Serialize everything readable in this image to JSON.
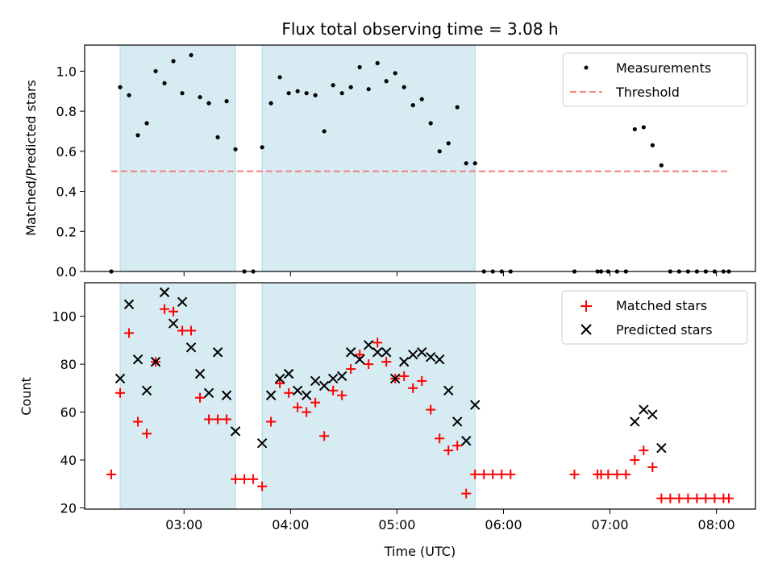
{
  "chart_data": [
    {
      "type": "scatter",
      "title": "Flux total observing time = 3.08 h",
      "xlabel": "",
      "ylabel": "Matched/Predicted stars",
      "ylim": [
        0,
        1.13
      ],
      "yticks": [
        "0.0",
        "0.2",
        "0.4",
        "0.6",
        "0.8",
        "1.0"
      ],
      "ytick_values": [
        0,
        0.2,
        0.4,
        0.6,
        0.8,
        1.0
      ],
      "xlim": [
        "02:04",
        "08:22"
      ],
      "shaded_intervals": [
        [
          "02:24",
          "03:29"
        ],
        [
          "03:44",
          "05:44"
        ]
      ],
      "legend_position": "top-right",
      "legend": [
        "Measurements",
        "Threshold"
      ],
      "threshold": {
        "name": "Threshold",
        "value": 0.5,
        "x": [
          "02:19",
          "08:07"
        ],
        "color": "#f08080"
      },
      "series": [
        {
          "name": "Measurements",
          "marker": "dot",
          "color": "#000000",
          "points": [
            [
              "02:19",
              0.0
            ],
            [
              "02:24",
              0.92
            ],
            [
              "02:29",
              0.88
            ],
            [
              "02:34",
              0.68
            ],
            [
              "02:39",
              0.74
            ],
            [
              "02:44",
              1.0
            ],
            [
              "02:49",
              0.94
            ],
            [
              "02:54",
              1.05
            ],
            [
              "02:59",
              0.89
            ],
            [
              "03:04",
              1.08
            ],
            [
              "03:09",
              0.87
            ],
            [
              "03:14",
              0.84
            ],
            [
              "03:19",
              0.67
            ],
            [
              "03:24",
              0.85
            ],
            [
              "03:29",
              0.61
            ],
            [
              "03:34",
              0.0
            ],
            [
              "03:39",
              0.0
            ],
            [
              "03:44",
              0.62
            ],
            [
              "03:49",
              0.84
            ],
            [
              "03:54",
              0.97
            ],
            [
              "03:59",
              0.89
            ],
            [
              "04:04",
              0.9
            ],
            [
              "04:09",
              0.89
            ],
            [
              "04:14",
              0.88
            ],
            [
              "04:19",
              0.7
            ],
            [
              "04:24",
              0.93
            ],
            [
              "04:29",
              0.89
            ],
            [
              "04:34",
              0.92
            ],
            [
              "04:39",
              1.02
            ],
            [
              "04:44",
              0.91
            ],
            [
              "04:49",
              1.04
            ],
            [
              "04:54",
              0.95
            ],
            [
              "04:59",
              0.99
            ],
            [
              "05:04",
              0.92
            ],
            [
              "05:09",
              0.83
            ],
            [
              "05:14",
              0.86
            ],
            [
              "05:19",
              0.74
            ],
            [
              "05:24",
              0.6
            ],
            [
              "05:29",
              0.64
            ],
            [
              "05:34",
              0.82
            ],
            [
              "05:39",
              0.54
            ],
            [
              "05:44",
              0.54
            ],
            [
              "05:49",
              0.0
            ],
            [
              "05:54",
              0.0
            ],
            [
              "05:59",
              0.0
            ],
            [
              "06:04",
              0.0
            ],
            [
              "06:40",
              0.0
            ],
            [
              "06:53",
              0.0
            ],
            [
              "06:55",
              0.0
            ],
            [
              "06:59",
              0.0
            ],
            [
              "07:04",
              0.0
            ],
            [
              "07:09",
              0.0
            ],
            [
              "07:14",
              0.71
            ],
            [
              "07:19",
              0.72
            ],
            [
              "07:24",
              0.63
            ],
            [
              "07:29",
              0.53
            ],
            [
              "07:34",
              0.0
            ],
            [
              "07:39",
              0.0
            ],
            [
              "07:44",
              0.0
            ],
            [
              "07:49",
              0.0
            ],
            [
              "07:54",
              0.0
            ],
            [
              "07:59",
              0.0
            ],
            [
              "08:04",
              0.0
            ],
            [
              "08:07",
              0.0
            ]
          ]
        }
      ]
    },
    {
      "type": "scatter",
      "title": "",
      "xlabel": "Time (UTC)",
      "ylabel": "Count",
      "ylim": [
        19.5,
        114
      ],
      "yticks": [
        "20",
        "40",
        "60",
        "80",
        "100"
      ],
      "ytick_values": [
        20,
        40,
        60,
        80,
        100
      ],
      "xlim": [
        "02:04",
        "08:22"
      ],
      "xticks": [
        "03:00",
        "04:00",
        "05:00",
        "06:00",
        "07:00",
        "08:00"
      ],
      "shaded_intervals": [
        [
          "02:24",
          "03:29"
        ],
        [
          "03:44",
          "05:44"
        ]
      ],
      "legend_position": "top-right",
      "legend": [
        "Matched stars",
        "Predicted stars"
      ],
      "series": [
        {
          "name": "Matched stars",
          "marker": "plus",
          "color": "#ff0000",
          "points": [
            [
              "02:19",
              34
            ],
            [
              "02:24",
              68
            ],
            [
              "02:29",
              93
            ],
            [
              "02:34",
              56
            ],
            [
              "02:39",
              51
            ],
            [
              "02:44",
              81
            ],
            [
              "02:49",
              103
            ],
            [
              "02:54",
              102
            ],
            [
              "02:59",
              94
            ],
            [
              "03:04",
              94
            ],
            [
              "03:09",
              66
            ],
            [
              "03:14",
              57
            ],
            [
              "03:19",
              57
            ],
            [
              "03:24",
              57
            ],
            [
              "03:29",
              32
            ],
            [
              "03:34",
              32
            ],
            [
              "03:39",
              32
            ],
            [
              "03:44",
              29
            ],
            [
              "03:49",
              56
            ],
            [
              "03:54",
              72
            ],
            [
              "03:59",
              68
            ],
            [
              "04:04",
              62
            ],
            [
              "04:09",
              60
            ],
            [
              "04:14",
              64
            ],
            [
              "04:19",
              50
            ],
            [
              "04:24",
              69
            ],
            [
              "04:29",
              67
            ],
            [
              "04:34",
              78
            ],
            [
              "04:39",
              84
            ],
            [
              "04:44",
              80
            ],
            [
              "04:49",
              89
            ],
            [
              "04:54",
              81
            ],
            [
              "04:59",
              74
            ],
            [
              "05:04",
              75
            ],
            [
              "05:09",
              70
            ],
            [
              "05:14",
              73
            ],
            [
              "05:19",
              61
            ],
            [
              "05:24",
              49
            ],
            [
              "05:29",
              44
            ],
            [
              "05:34",
              46
            ],
            [
              "05:39",
              26
            ],
            [
              "05:44",
              34
            ],
            [
              "05:49",
              34
            ],
            [
              "05:54",
              34
            ],
            [
              "05:59",
              34
            ],
            [
              "06:04",
              34
            ],
            [
              "06:40",
              34
            ],
            [
              "06:53",
              34
            ],
            [
              "06:55",
              34
            ],
            [
              "06:59",
              34
            ],
            [
              "07:04",
              34
            ],
            [
              "07:09",
              34
            ],
            [
              "07:14",
              40
            ],
            [
              "07:19",
              44
            ],
            [
              "07:24",
              37
            ],
            [
              "07:29",
              24
            ],
            [
              "07:34",
              24
            ],
            [
              "07:39",
              24
            ],
            [
              "07:44",
              24
            ],
            [
              "07:49",
              24
            ],
            [
              "07:54",
              24
            ],
            [
              "07:59",
              24
            ],
            [
              "08:04",
              24
            ],
            [
              "08:07",
              24
            ]
          ]
        },
        {
          "name": "Predicted stars",
          "marker": "x",
          "color": "#000000",
          "points": [
            [
              "02:24",
              74
            ],
            [
              "02:29",
              105
            ],
            [
              "02:34",
              82
            ],
            [
              "02:39",
              69
            ],
            [
              "02:44",
              81
            ],
            [
              "02:49",
              110
            ],
            [
              "02:54",
              97
            ],
            [
              "02:59",
              106
            ],
            [
              "03:04",
              87
            ],
            [
              "03:09",
              76
            ],
            [
              "03:14",
              68
            ],
            [
              "03:19",
              85
            ],
            [
              "03:24",
              67
            ],
            [
              "03:29",
              52
            ],
            [
              "03:44",
              47
            ],
            [
              "03:49",
              67
            ],
            [
              "03:54",
              74
            ],
            [
              "03:59",
              76
            ],
            [
              "04:04",
              69
            ],
            [
              "04:09",
              67
            ],
            [
              "04:14",
              73
            ],
            [
              "04:19",
              71
            ],
            [
              "04:24",
              74
            ],
            [
              "04:29",
              75
            ],
            [
              "04:34",
              85
            ],
            [
              "04:39",
              82
            ],
            [
              "04:44",
              88
            ],
            [
              "04:49",
              85
            ],
            [
              "04:54",
              85
            ],
            [
              "04:59",
              74
            ],
            [
              "05:04",
              81
            ],
            [
              "05:09",
              84
            ],
            [
              "05:14",
              85
            ],
            [
              "05:19",
              83
            ],
            [
              "05:24",
              82
            ],
            [
              "05:29",
              69
            ],
            [
              "05:34",
              56
            ],
            [
              "05:39",
              48
            ],
            [
              "05:44",
              63
            ],
            [
              "07:14",
              56
            ],
            [
              "07:19",
              61
            ],
            [
              "07:24",
              59
            ],
            [
              "07:29",
              45
            ]
          ]
        }
      ]
    }
  ]
}
